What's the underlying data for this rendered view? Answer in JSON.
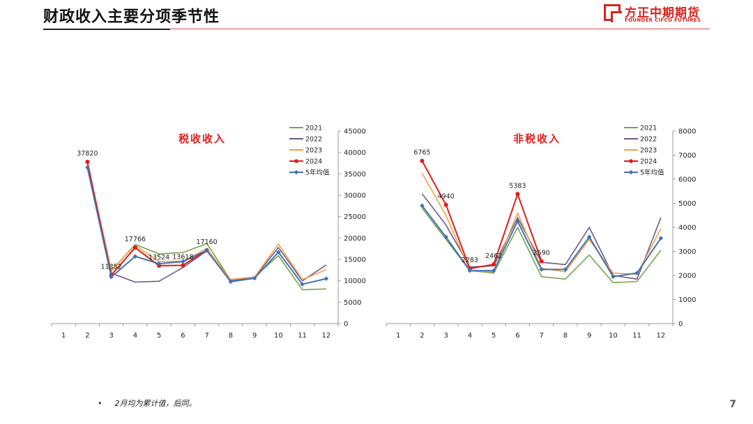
{
  "header": {
    "title": "财政收入主要分项季节性",
    "logo_cn": "方正中期期货",
    "logo_en": "FOUNDER CIFCO FUTURES"
  },
  "footer": {
    "bullet": "•",
    "note": "2月均为累计值，后同。",
    "page_number": "7"
  },
  "chart_data": [
    {
      "type": "line",
      "title": "税收收入",
      "x": [
        "1",
        "2",
        "3",
        "4",
        "5",
        "6",
        "7",
        "8",
        "9",
        "10",
        "11",
        "12"
      ],
      "ylim": [
        0,
        45000
      ],
      "yticks": [
        0,
        5000,
        10000,
        15000,
        20000,
        25000,
        30000,
        35000,
        40000,
        45000
      ],
      "y_axis_side": "right",
      "legend_position": "top-right",
      "grid": false,
      "series": [
        {
          "name": "2021",
          "color": "#77a34b",
          "marker": "none",
          "values": [
            null,
            37000,
            12300,
            18500,
            16300,
            16600,
            18700,
            10200,
            10900,
            15900,
            7900,
            8100
          ]
        },
        {
          "name": "2022",
          "color": "#6a5a8a",
          "marker": "none",
          "values": [
            null,
            37000,
            11800,
            9700,
            9900,
            13100,
            17000,
            10000,
            10800,
            17800,
            10000,
            13700
          ]
        },
        {
          "name": "2023",
          "color": "#f0a04a",
          "marker": "none",
          "values": [
            null,
            37500,
            12500,
            18300,
            14500,
            14600,
            17500,
            10300,
            10900,
            18600,
            10300,
            12600
          ]
        },
        {
          "name": "2024",
          "color": "#e31b1b",
          "marker": "circle",
          "values": [
            null,
            37820,
            11352,
            17766,
            13524,
            13618,
            17160,
            null,
            null,
            null,
            null,
            null
          ]
        },
        {
          "name": "5年均值",
          "color": "#4472b0",
          "marker": "diamond",
          "values": [
            null,
            36500,
            10900,
            15700,
            14000,
            14500,
            17100,
            9800,
            10600,
            16700,
            9200,
            10500
          ]
        }
      ],
      "data_labels": [
        {
          "series": "2024",
          "index": 1,
          "text": "37820"
        },
        {
          "series": "2024",
          "index": 2,
          "text": "11352"
        },
        {
          "series": "2024",
          "index": 3,
          "text": "17766"
        },
        {
          "series": "2024",
          "index": 4,
          "text": "13524"
        },
        {
          "series": "2024",
          "index": 5,
          "text": "13618"
        },
        {
          "series": "2024",
          "index": 6,
          "text": "17160"
        }
      ]
    },
    {
      "type": "line",
      "title": "非税收入",
      "x": [
        "1",
        "2",
        "3",
        "4",
        "5",
        "6",
        "7",
        "8",
        "9",
        "10",
        "11",
        "12"
      ],
      "ylim": [
        0,
        8000
      ],
      "yticks": [
        0,
        1000,
        2000,
        3000,
        4000,
        5000,
        6000,
        7000,
        8000
      ],
      "y_axis_side": "right",
      "legend_position": "top-right",
      "grid": false,
      "series": [
        {
          "name": "2021",
          "color": "#77a34b",
          "marker": "none",
          "values": [
            null,
            4800,
            3500,
            2200,
            2100,
            4000,
            1950,
            1850,
            2850,
            1700,
            1750,
            3050
          ]
        },
        {
          "name": "2022",
          "color": "#6a5a8a",
          "marker": "none",
          "values": [
            null,
            5400,
            4100,
            2350,
            2400,
            4400,
            2550,
            2450,
            4000,
            2000,
            1850,
            4400
          ]
        },
        {
          "name": "2023",
          "color": "#f0a04a",
          "marker": "none",
          "values": [
            null,
            6250,
            4500,
            2200,
            2150,
            4600,
            2300,
            2150,
            3500,
            2100,
            2050,
            3950
          ]
        },
        {
          "name": "2024",
          "color": "#e31b1b",
          "marker": "circle",
          "values": [
            null,
            6765,
            4940,
            2283,
            2462,
            5383,
            2590,
            null,
            null,
            null,
            null,
            null
          ]
        },
        {
          "name": "5年均值",
          "color": "#4472b0",
          "marker": "diamond",
          "values": [
            null,
            4900,
            3600,
            2200,
            2200,
            4250,
            2250,
            2250,
            3600,
            1950,
            2100,
            3550
          ]
        }
      ],
      "data_labels": [
        {
          "series": "2024",
          "index": 1,
          "text": "6765"
        },
        {
          "series": "2024",
          "index": 2,
          "text": "4940"
        },
        {
          "series": "2024",
          "index": 3,
          "text": "2283"
        },
        {
          "series": "2024",
          "index": 4,
          "text": "2462"
        },
        {
          "series": "2024",
          "index": 5,
          "text": "5383"
        },
        {
          "series": "2024",
          "index": 6,
          "text": "2590"
        }
      ]
    }
  ]
}
